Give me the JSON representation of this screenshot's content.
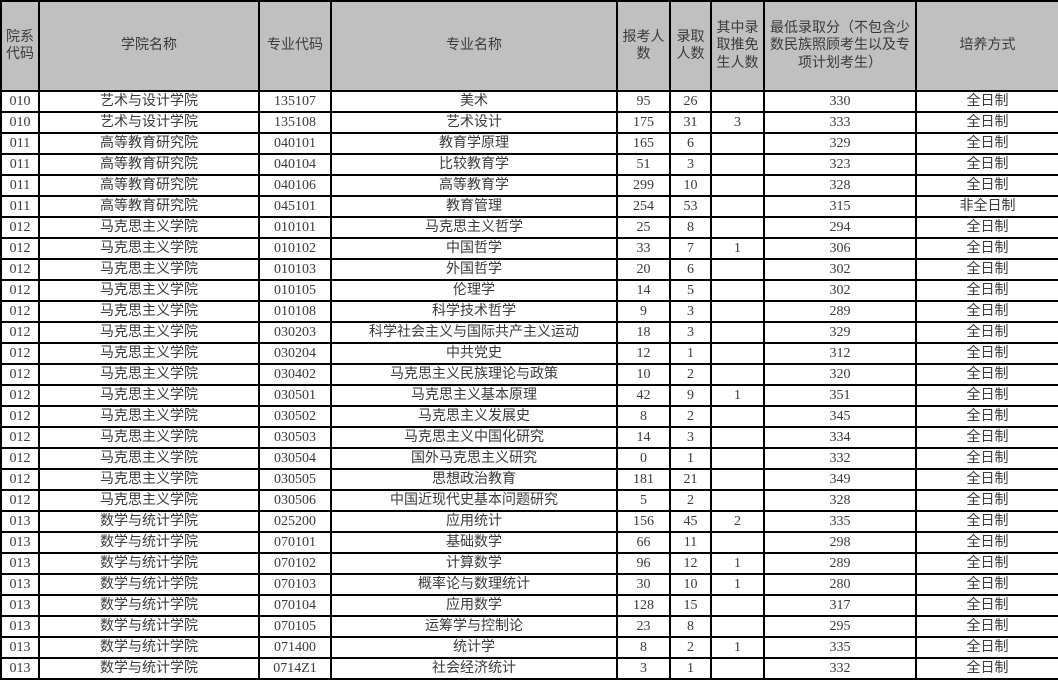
{
  "table": {
    "headers": [
      "院系代码",
      "学院名称",
      "专业代码",
      "专业名称",
      "报考人数",
      "录取人数",
      "其中录取推免生人数",
      "最低录取分（不包含少数民族照顾考生以及专项计划考生）",
      "培养方式"
    ],
    "column_keys": [
      "dept-code",
      "college-name",
      "major-code",
      "major-name",
      "applicants",
      "admitted",
      "recommended-exempt",
      "min-score",
      "training-mode"
    ],
    "rows": [
      [
        "010",
        "艺术与设计学院",
        "135107",
        "美术",
        "95",
        "26",
        "",
        "330",
        "全日制"
      ],
      [
        "010",
        "艺术与设计学院",
        "135108",
        "艺术设计",
        "175",
        "31",
        "3",
        "333",
        "全日制"
      ],
      [
        "011",
        "高等教育研究院",
        "040101",
        "教育学原理",
        "165",
        "6",
        "",
        "329",
        "全日制"
      ],
      [
        "011",
        "高等教育研究院",
        "040104",
        "比较教育学",
        "51",
        "3",
        "",
        "323",
        "全日制"
      ],
      [
        "011",
        "高等教育研究院",
        "040106",
        "高等教育学",
        "299",
        "10",
        "",
        "328",
        "全日制"
      ],
      [
        "011",
        "高等教育研究院",
        "045101",
        "教育管理",
        "254",
        "53",
        "",
        "315",
        "非全日制"
      ],
      [
        "012",
        "马克思主义学院",
        "010101",
        "马克思主义哲学",
        "25",
        "8",
        "",
        "294",
        "全日制"
      ],
      [
        "012",
        "马克思主义学院",
        "010102",
        "中国哲学",
        "33",
        "7",
        "1",
        "306",
        "全日制"
      ],
      [
        "012",
        "马克思主义学院",
        "010103",
        "外国哲学",
        "20",
        "6",
        "",
        "302",
        "全日制"
      ],
      [
        "012",
        "马克思主义学院",
        "010105",
        "伦理学",
        "14",
        "5",
        "",
        "302",
        "全日制"
      ],
      [
        "012",
        "马克思主义学院",
        "010108",
        "科学技术哲学",
        "9",
        "3",
        "",
        "289",
        "全日制"
      ],
      [
        "012",
        "马克思主义学院",
        "030203",
        "科学社会主义与国际共产主义运动",
        "18",
        "3",
        "",
        "329",
        "全日制"
      ],
      [
        "012",
        "马克思主义学院",
        "030204",
        "中共党史",
        "12",
        "1",
        "",
        "312",
        "全日制"
      ],
      [
        "012",
        "马克思主义学院",
        "030402",
        "马克思主义民族理论与政策",
        "10",
        "2",
        "",
        "320",
        "全日制"
      ],
      [
        "012",
        "马克思主义学院",
        "030501",
        "马克思主义基本原理",
        "42",
        "9",
        "1",
        "351",
        "全日制"
      ],
      [
        "012",
        "马克思主义学院",
        "030502",
        "马克思主义发展史",
        "8",
        "2",
        "",
        "345",
        "全日制"
      ],
      [
        "012",
        "马克思主义学院",
        "030503",
        "马克思主义中国化研究",
        "14",
        "3",
        "",
        "334",
        "全日制"
      ],
      [
        "012",
        "马克思主义学院",
        "030504",
        "国外马克思主义研究",
        "0",
        "1",
        "",
        "332",
        "全日制"
      ],
      [
        "012",
        "马克思主义学院",
        "030505",
        "思想政治教育",
        "181",
        "21",
        "",
        "349",
        "全日制"
      ],
      [
        "012",
        "马克思主义学院",
        "030506",
        "中国近现代史基本问题研究",
        "5",
        "2",
        "",
        "328",
        "全日制"
      ],
      [
        "013",
        "数学与统计学院",
        "025200",
        "应用统计",
        "156",
        "45",
        "2",
        "335",
        "全日制"
      ],
      [
        "013",
        "数学与统计学院",
        "070101",
        "基础数学",
        "66",
        "11",
        "",
        "298",
        "全日制"
      ],
      [
        "013",
        "数学与统计学院",
        "070102",
        "计算数学",
        "96",
        "12",
        "1",
        "289",
        "全日制"
      ],
      [
        "013",
        "数学与统计学院",
        "070103",
        "概率论与数理统计",
        "30",
        "10",
        "1",
        "280",
        "全日制"
      ],
      [
        "013",
        "数学与统计学院",
        "070104",
        "应用数学",
        "128",
        "15",
        "",
        "317",
        "全日制"
      ],
      [
        "013",
        "数学与统计学院",
        "070105",
        "运筹学与控制论",
        "23",
        "8",
        "",
        "295",
        "全日制"
      ],
      [
        "013",
        "数学与统计学院",
        "071400",
        "统计学",
        "8",
        "2",
        "1",
        "335",
        "全日制"
      ],
      [
        "013",
        "数学与统计学院",
        "0714Z1",
        "社会经济统计",
        "3",
        "1",
        "",
        "332",
        "全日制"
      ]
    ]
  },
  "colors": {
    "header_bg": "#c0c0c0",
    "border": "#000000",
    "text": "#3a3a3a",
    "row_bg": "#ffffff"
  }
}
